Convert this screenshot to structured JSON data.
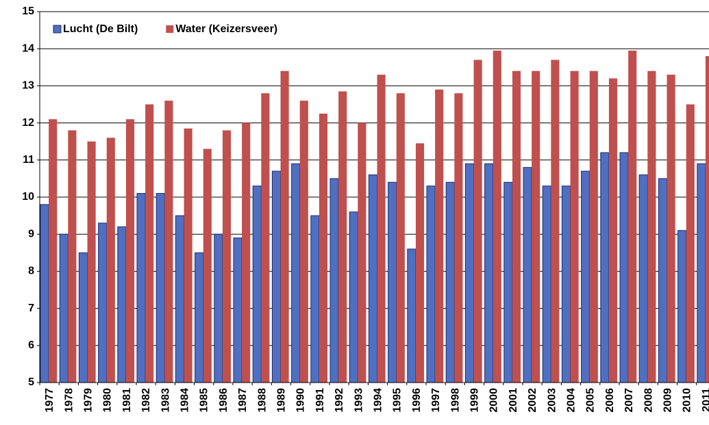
{
  "chart_data": {
    "type": "bar",
    "categories": [
      "1977",
      "1978",
      "1979",
      "1980",
      "1981",
      "1982",
      "1983",
      "1984",
      "1985",
      "1986",
      "1987",
      "1988",
      "1989",
      "1990",
      "1991",
      "1992",
      "1993",
      "1994",
      "1995",
      "1996",
      "1997",
      "1998",
      "1999",
      "2000",
      "2001",
      "2002",
      "2003",
      "2004",
      "2005",
      "2006",
      "2007",
      "2008",
      "2009",
      "2010",
      "2011"
    ],
    "series": [
      {
        "name": "Lucht (De Bilt)",
        "color": "#4f6fc1",
        "values": [
          9.8,
          9.0,
          8.5,
          9.3,
          9.2,
          10.1,
          10.1,
          9.5,
          8.5,
          9.0,
          8.9,
          10.3,
          10.7,
          10.9,
          9.5,
          10.5,
          9.6,
          10.6,
          10.4,
          8.6,
          10.3,
          10.4,
          10.9,
          10.9,
          10.4,
          10.8,
          10.3,
          10.3,
          10.7,
          11.2,
          11.2,
          10.6,
          10.5,
          9.1,
          10.9
        ]
      },
      {
        "name": "Water (Keizersveer)",
        "color": "#c0504d",
        "values": [
          12.1,
          11.8,
          11.5,
          11.6,
          12.1,
          12.5,
          12.6,
          11.85,
          11.3,
          11.8,
          12.0,
          12.8,
          13.4,
          12.6,
          12.25,
          12.85,
          12.0,
          13.3,
          12.8,
          11.45,
          12.9,
          12.8,
          13.7,
          13.95,
          13.4,
          13.4,
          13.7,
          13.4,
          13.4,
          13.2,
          13.95,
          13.4,
          13.3,
          12.5,
          13.8
        ]
      }
    ],
    "ylim": [
      5,
      15
    ],
    "yticks": [
      5,
      6,
      7,
      8,
      9,
      10,
      11,
      12,
      13,
      14,
      15
    ],
    "grid": true,
    "legend": "top-left"
  }
}
